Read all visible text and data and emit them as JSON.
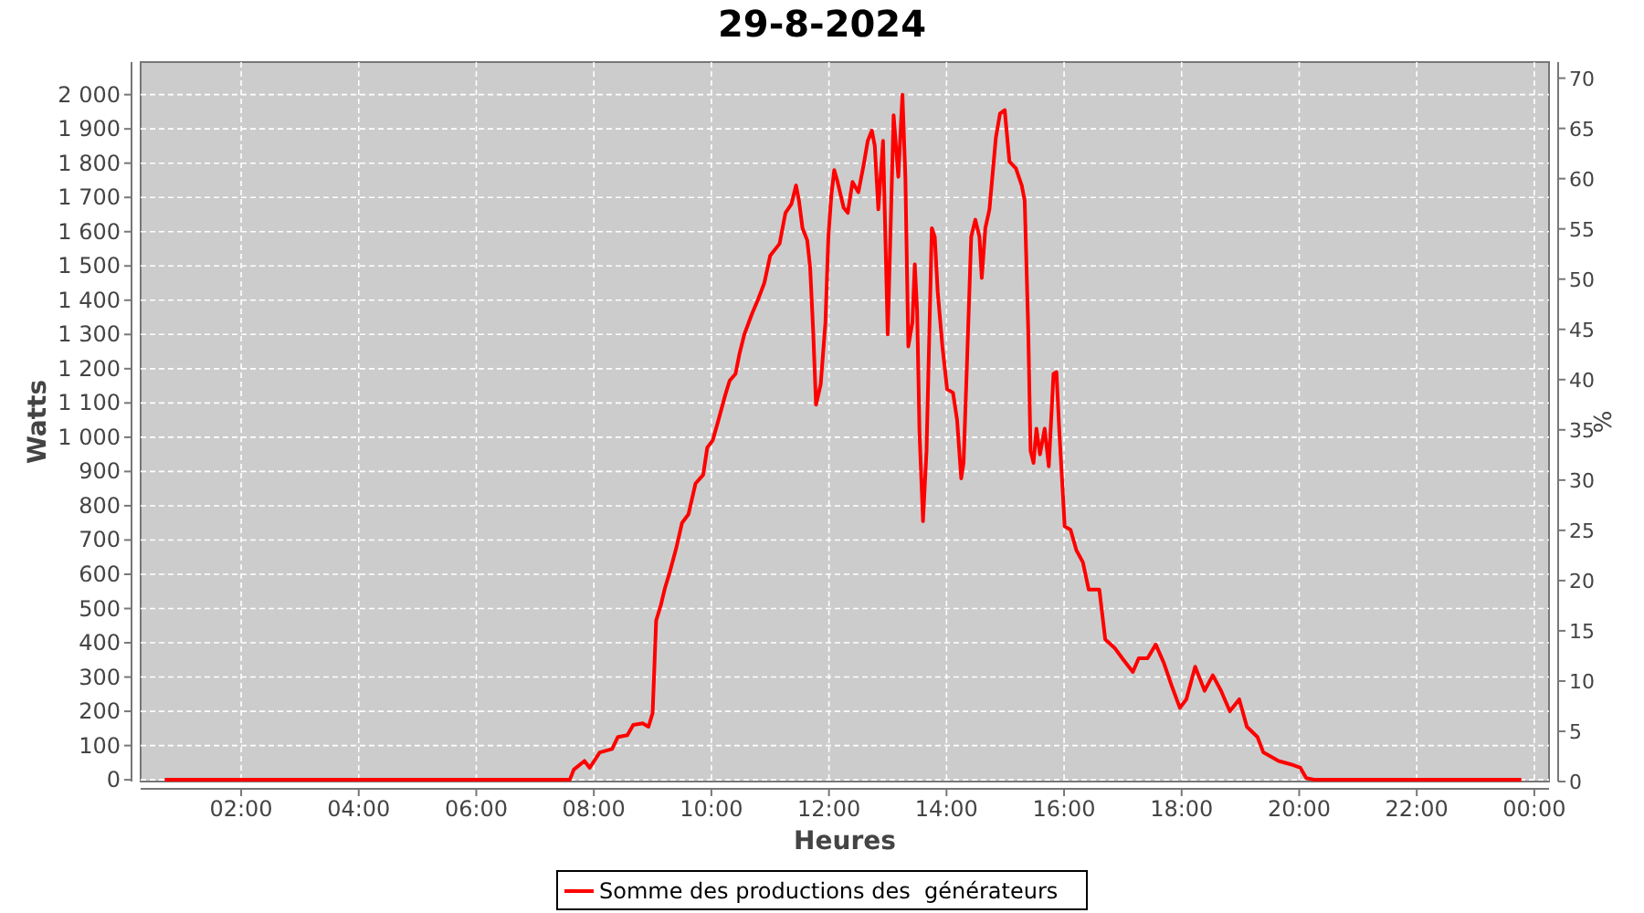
{
  "chart_data": {
    "type": "line",
    "title": "29-8-2024",
    "xlabel": "Heures",
    "ylabel": "Watts",
    "y2label": "%",
    "x": [
      0.7,
      7.59,
      7.66,
      7.84,
      7.93,
      8.1,
      8.31,
      8.41,
      8.57,
      8.67,
      8.83,
      8.93,
      9.0,
      9.06,
      9.14,
      9.21,
      9.29,
      9.4,
      9.5,
      9.61,
      9.73,
      9.86,
      9.93,
      10.02,
      10.12,
      10.23,
      10.31,
      10.41,
      10.48,
      10.56,
      10.69,
      10.8,
      10.9,
      11.0,
      11.16,
      11.26,
      11.36,
      11.44,
      11.49,
      11.55,
      11.63,
      11.68,
      11.73,
      11.78,
      11.86,
      11.94,
      11.99,
      12.04,
      12.09,
      12.14,
      12.25,
      12.32,
      12.4,
      12.5,
      12.59,
      12.66,
      12.73,
      12.78,
      12.84,
      12.92,
      13.0,
      13.1,
      13.18,
      13.25,
      13.3,
      13.35,
      13.42,
      13.46,
      13.5,
      13.54,
      13.6,
      13.66,
      13.75,
      13.8,
      13.85,
      13.93,
      14.01,
      14.11,
      14.18,
      14.25,
      14.29,
      14.35,
      14.42,
      14.49,
      14.56,
      14.6,
      14.66,
      14.73,
      14.84,
      14.91,
      14.99,
      15.07,
      15.18,
      15.28,
      15.33,
      15.39,
      15.43,
      15.48,
      15.53,
      15.59,
      15.67,
      15.74,
      15.82,
      15.87,
      15.92,
      16.01,
      16.11,
      16.21,
      16.32,
      16.42,
      16.6,
      16.7,
      16.86,
      17.01,
      17.17,
      17.27,
      17.42,
      17.56,
      17.7,
      17.84,
      17.97,
      18.08,
      18.23,
      18.39,
      18.53,
      18.67,
      18.82,
      18.98,
      19.11,
      19.29,
      19.39,
      19.65,
      19.86,
      20.02,
      20.12,
      20.27,
      23.78
    ],
    "series": [
      {
        "name": "Somme des productions des  générateurs",
        "color": "#ff0000",
        "values": [
          0,
          0,
          30,
          55,
          35,
          80,
          90,
          125,
          130,
          160,
          165,
          155,
          195,
          465,
          510,
          560,
          605,
          675,
          750,
          775,
          865,
          890,
          970,
          990,
          1050,
          1120,
          1165,
          1185,
          1245,
          1300,
          1360,
          1405,
          1450,
          1530,
          1565,
          1655,
          1680,
          1735,
          1690,
          1610,
          1575,
          1495,
          1315,
          1095,
          1155,
          1335,
          1585,
          1705,
          1780,
          1750,
          1670,
          1655,
          1745,
          1715,
          1795,
          1865,
          1895,
          1850,
          1665,
          1865,
          1300,
          1940,
          1760,
          2000,
          1760,
          1265,
          1335,
          1505,
          1370,
          1015,
          755,
          960,
          1610,
          1585,
          1425,
          1265,
          1140,
          1130,
          1050,
          880,
          925,
          1225,
          1585,
          1635,
          1585,
          1465,
          1610,
          1665,
          1875,
          1945,
          1955,
          1805,
          1785,
          1735,
          1690,
          1315,
          960,
          925,
          1025,
          950,
          1025,
          915,
          1185,
          1190,
          1015,
          740,
          730,
          670,
          635,
          555,
          555,
          410,
          385,
          350,
          315,
          355,
          355,
          395,
          340,
          270,
          210,
          235,
          330,
          260,
          305,
          260,
          200,
          235,
          155,
          125,
          80,
          55,
          45,
          35,
          5,
          0,
          0
        ]
      }
    ],
    "xlim": [
      0.29,
      24.25
    ],
    "xticks": [
      {
        "value": 2,
        "label": "02:00"
      },
      {
        "value": 4,
        "label": "04:00"
      },
      {
        "value": 6,
        "label": "06:00"
      },
      {
        "value": 8,
        "label": "08:00"
      },
      {
        "value": 10,
        "label": "10:00"
      },
      {
        "value": 12,
        "label": "12:00"
      },
      {
        "value": 14,
        "label": "14:00"
      },
      {
        "value": 16,
        "label": "16:00"
      },
      {
        "value": 18,
        "label": "18:00"
      },
      {
        "value": 20,
        "label": "20:00"
      },
      {
        "value": 22,
        "label": "22:00"
      },
      {
        "value": 24,
        "label": "00:00"
      }
    ],
    "ylim": [
      -5,
      2095
    ],
    "yticks": [
      0,
      100,
      200,
      300,
      400,
      500,
      600,
      700,
      800,
      900,
      {
        "value": 1000,
        "label": "1 000"
      },
      {
        "value": 1100,
        "label": "1 100"
      },
      {
        "value": 1200,
        "label": "1 200"
      },
      {
        "value": 1300,
        "label": "1 300"
      },
      {
        "value": 1400,
        "label": "1 400"
      },
      {
        "value": 1500,
        "label": "1 500"
      },
      {
        "value": 1600,
        "label": "1 600"
      },
      {
        "value": 1700,
        "label": "1 700"
      },
      {
        "value": 1800,
        "label": "1 800"
      },
      {
        "value": 1900,
        "label": "1 900"
      },
      {
        "value": 2000,
        "label": "2 000"
      }
    ],
    "y2lim": [
      0,
      71.6
    ],
    "y2ticks": [
      0,
      5,
      10,
      15,
      20,
      25,
      30,
      35,
      40,
      45,
      50,
      55,
      60,
      65,
      70
    ],
    "grid": true,
    "legend": "bottom",
    "line_style": "solid"
  }
}
